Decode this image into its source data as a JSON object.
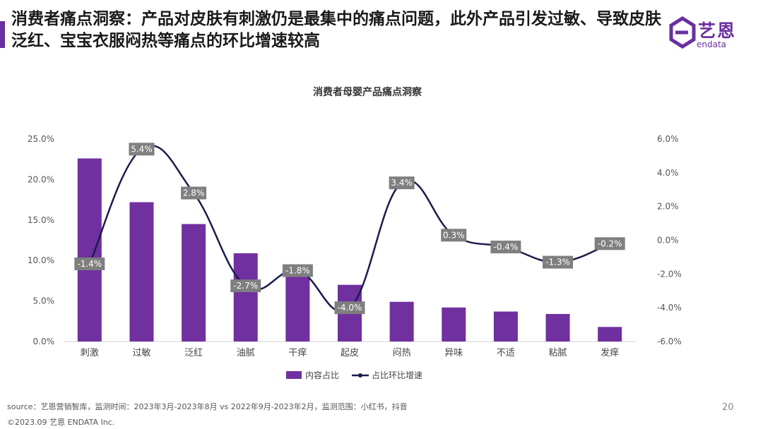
{
  "header": {
    "title": "消费者痛点洞察：产品对皮肤有刺激仍是最集中的痛点问题，此外产品引发过敏、导致皮肤泛红、宝宝衣服闷热等痛点的环比增速较高"
  },
  "logo": {
    "cn": "艺恩",
    "en": "endata"
  },
  "colors": {
    "accent": "#6a2fa0",
    "bar": "#7030a0",
    "line": "#1c1b4d",
    "label_bg": "#7f7f7f"
  },
  "chart_data": {
    "type": "bar+line",
    "title": "消费者母婴产品痛点洞察",
    "categories": [
      "刺激",
      "过敏",
      "泛红",
      "油腻",
      "干痒",
      "起皮",
      "闷热",
      "异味",
      "不适",
      "粘腻",
      "发痒"
    ],
    "series": [
      {
        "name": "内容占比",
        "type": "bar",
        "axis": "left",
        "values": [
          22.6,
          17.2,
          14.5,
          10.9,
          8.4,
          7.0,
          4.9,
          4.2,
          3.7,
          3.4,
          1.8
        ]
      },
      {
        "name": "占比环比增速",
        "type": "line",
        "axis": "right",
        "values": [
          -1.4,
          5.4,
          2.8,
          -2.7,
          -1.8,
          -4.0,
          3.4,
          0.3,
          -0.4,
          -1.3,
          -0.2
        ],
        "labels": [
          "-1.4%",
          "5.4%",
          "2.8%",
          "-2.7%",
          "-1.8%",
          "-4.0%",
          "3.4%",
          "0.3%",
          "-0.4%",
          "-1.3%",
          "-0.2%"
        ]
      }
    ],
    "left_axis": {
      "min": 0,
      "max": 25,
      "ticks": [
        "0.0%",
        "5.0%",
        "10.0%",
        "15.0%",
        "20.0%",
        "25.0%"
      ]
    },
    "right_axis": {
      "min": -6,
      "max": 6,
      "ticks": [
        "-6.0%",
        "-4.0%",
        "-2.0%",
        "0.0%",
        "2.0%",
        "4.0%",
        "6.0%"
      ]
    },
    "legend": [
      "内容占比",
      "占比环比增速"
    ]
  },
  "footer": {
    "source": "source：艺恩营销智库，监测时间：2023年3月-2023年8月 vs 2022年9月-2023年2月，监测范围：小红书，抖音",
    "copyright": "©2023.09  艺恩 ENDATA Inc.",
    "page": "20"
  }
}
